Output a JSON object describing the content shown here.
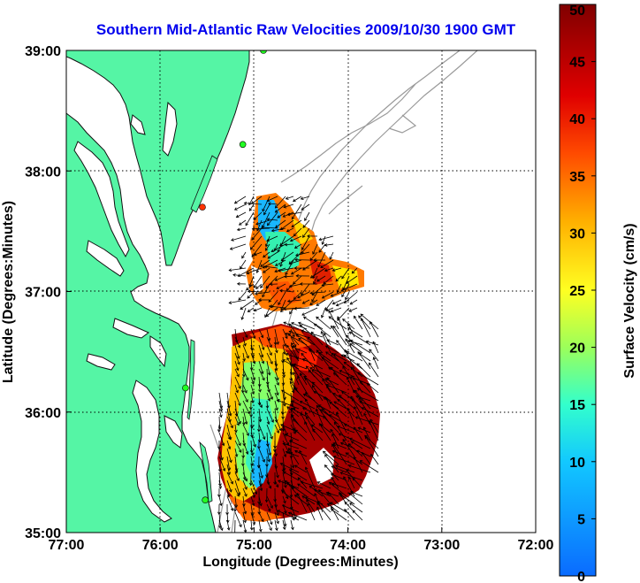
{
  "title": "Southern Mid-Atlantic Raw Velocities 2009/10/30 1900 GMT",
  "map": {
    "xlabel": "Longitude (Degrees:Minutes)",
    "ylabel": "Latitude (Degrees:Minutes)",
    "lon_ticks": [
      {
        "value": -77,
        "label": "77:00"
      },
      {
        "value": -76,
        "label": "76:00"
      },
      {
        "value": -75,
        "label": "75:00"
      },
      {
        "value": -74,
        "label": "74:00"
      },
      {
        "value": -73,
        "label": "73:00"
      },
      {
        "value": -72,
        "label": "72:00"
      }
    ],
    "lat_ticks": [
      {
        "value": 39,
        "label": "39:00"
      },
      {
        "value": 38,
        "label": "38:00"
      },
      {
        "value": 37,
        "label": "37:00"
      },
      {
        "value": 36,
        "label": "36:00"
      },
      {
        "value": 35,
        "label": "35:00"
      }
    ],
    "lon_range": [
      -77,
      -72
    ],
    "lat_range": [
      35,
      39
    ],
    "grid": true,
    "land_color": "#55f5a5",
    "water_color": "#ffffff",
    "stations": [
      {
        "lon": -74.9,
        "lat": 39.0,
        "color": "#22ff22"
      },
      {
        "lon": -75.12,
        "lat": 38.22,
        "color": "#22ff22"
      },
      {
        "lon": -75.55,
        "lat": 37.7,
        "color": "#ff3300"
      },
      {
        "lon": -75.73,
        "lat": 36.2,
        "color": "#22ff22"
      },
      {
        "lon": -75.52,
        "lat": 35.27,
        "color": "#22ff22"
      }
    ]
  },
  "colorbar": {
    "label": "Surface Velocity (cm/s)",
    "min": 0,
    "max": 50,
    "ticks": [
      "0",
      "5",
      "10",
      "15",
      "20",
      "25",
      "30",
      "35",
      "40",
      "45",
      "50"
    ]
  }
}
